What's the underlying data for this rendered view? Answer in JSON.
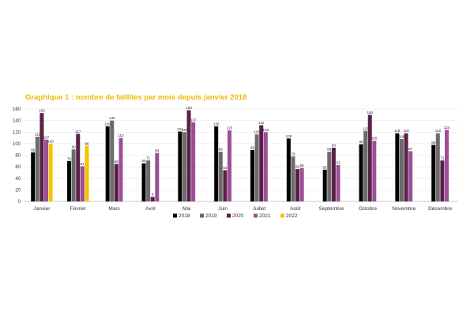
{
  "chart_data": {
    "type": "bar",
    "title": "Graphique 1 : nombre de faillites par mois depuis janvier 2018",
    "xlabel": "",
    "ylabel": "",
    "ylim": [
      0,
      160
    ],
    "yticks": [
      0,
      20,
      40,
      60,
      80,
      100,
      120,
      140,
      160
    ],
    "grid": true,
    "legend_position": "bottom",
    "categories": [
      "Janvier",
      "Février",
      "Mars",
      "Avril",
      "Mai",
      "Juin",
      "Juillet",
      "Août",
      "Septembre",
      "Octobre",
      "Novembre",
      "Décembre"
    ],
    "series": [
      {
        "name": "2018",
        "color": "#000000",
        "values": [
          85,
          70,
          130,
          66,
          121,
          130,
          89,
          109,
          55,
          99,
          118,
          98
        ]
      },
      {
        "name": "2019",
        "color": "#6b6b6b",
        "values": [
          112,
          90,
          140,
          71,
          120,
          86,
          116,
          78,
          86,
          122,
          108,
          118
        ]
      },
      {
        "name": "2020",
        "color": "#5a2148",
        "values": [
          153,
          117,
          65,
          8,
          158,
          54,
          132,
          56,
          93,
          150,
          118,
          71
        ]
      },
      {
        "name": "2021",
        "color": "#9c4f96",
        "values": [
          107,
          61,
          110,
          84,
          137,
          123,
          120,
          58,
          63,
          105,
          87,
          124
        ]
      },
      {
        "name": "2022",
        "color": "#f5c400",
        "values": [
          100,
          96,
          null,
          null,
          null,
          null,
          null,
          null,
          null,
          null,
          null,
          null
        ]
      }
    ],
    "data_labels": [
      [
        "85",
        "112",
        "153",
        "107",
        "100"
      ],
      [
        "70",
        "90",
        "117",
        "61",
        "96"
      ],
      [
        "130",
        "140",
        "65",
        "110",
        ""
      ],
      [
        "66",
        "71",
        "8",
        "84",
        ""
      ],
      [
        "121",
        "120",
        "158",
        "137",
        ""
      ],
      [
        "130",
        "86",
        "54",
        "123",
        ""
      ],
      [
        "89",
        "116",
        "132",
        "120",
        ""
      ],
      [
        "109",
        "78",
        "56",
        "58",
        ""
      ],
      [
        "55",
        "86",
        "93",
        "63",
        ""
      ],
      [
        "99",
        "122",
        "150",
        "105",
        ""
      ],
      [
        "118",
        "108",
        "118",
        "87",
        ""
      ],
      [
        "98",
        "118",
        "71",
        "124",
        ""
      ]
    ]
  }
}
